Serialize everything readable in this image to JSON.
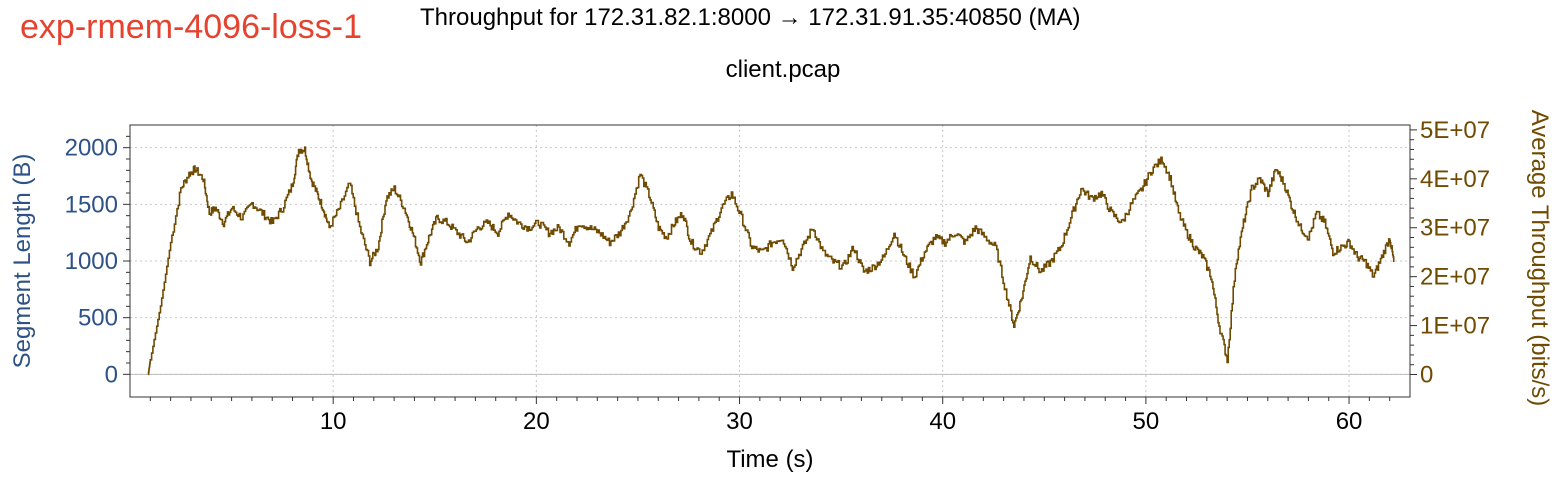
{
  "header": {
    "experiment_label": "exp-rmem-4096-loss-1",
    "title": "Throughput for 172.31.82.1:8000 → 172.31.91.35:40850 (MA)",
    "subtitle": "client.pcap"
  },
  "colors": {
    "experiment_label": "#e5432f",
    "left_axis": "#2e5287",
    "right_axis": "#6e4b00",
    "series": "#6e4b00",
    "grid": "#c8c8c8"
  },
  "chart_data": {
    "type": "line",
    "title": "Throughput for 172.31.82.1:8000 → 172.31.91.35:40850 (MA)",
    "subtitle": "client.pcap",
    "xlabel": "Time (s)",
    "ylabel": "Segment Length (B)",
    "y2label": "Average Throughput (bits/s)",
    "xlim": [
      0,
      63
    ],
    "ylim": [
      -200,
      2200
    ],
    "y2lim": [
      -4600000.0,
      51000000.0
    ],
    "x_ticks": [
      10,
      20,
      30,
      40,
      50,
      60
    ],
    "y_ticks": [
      0,
      500,
      1000,
      1500,
      2000
    ],
    "y2_ticks": [
      0,
      10000000,
      20000000,
      30000000,
      40000000,
      50000000
    ],
    "y2_tick_labels": [
      "0",
      "1E+07",
      "2E+07",
      "3E+07",
      "4E+07",
      "5E+07"
    ],
    "grid": true,
    "series": [
      {
        "axis": "right",
        "style": "step",
        "x": [
          0.9,
          1.0,
          1.5,
          2.0,
          2.5,
          2.9,
          3.2,
          3.6,
          3.9,
          4.2,
          4.6,
          5.0,
          5.5,
          6.0,
          6.5,
          7.0,
          7.5,
          8.0,
          8.3,
          8.6,
          8.9,
          9.2,
          9.5,
          9.8,
          10.3,
          10.8,
          11.3,
          11.8,
          12.2,
          12.6,
          13.0,
          13.5,
          13.9,
          14.3,
          14.7,
          15.1,
          15.6,
          16.1,
          16.6,
          17.1,
          17.6,
          18.1,
          18.6,
          19.1,
          19.6,
          20.1,
          20.6,
          21.1,
          21.6,
          22.1,
          22.6,
          23.1,
          23.6,
          24.1,
          24.6,
          25.1,
          25.6,
          26.0,
          26.4,
          26.8,
          27.2,
          27.6,
          28.1,
          28.6,
          29.1,
          29.6,
          30.1,
          30.6,
          31.1,
          31.6,
          32.1,
          32.6,
          33.1,
          33.6,
          34.1,
          34.6,
          35.1,
          35.6,
          36.1,
          36.6,
          37.1,
          37.6,
          38.1,
          38.6,
          39.1,
          39.6,
          40.1,
          40.6,
          41.1,
          41.6,
          42.1,
          42.6,
          43.1,
          43.5,
          43.9,
          44.3,
          44.8,
          45.3,
          45.8,
          46.3,
          46.8,
          47.3,
          47.8,
          48.3,
          48.8,
          49.3,
          49.8,
          50.3,
          50.8,
          51.2,
          51.6,
          52.0,
          52.4,
          52.8,
          53.2,
          53.6,
          54.0,
          54.4,
          54.8,
          55.2,
          55.6,
          56.0,
          56.4,
          56.8,
          57.2,
          57.6,
          58.0,
          58.4,
          58.8,
          59.2,
          59.6,
          60.0,
          60.4,
          60.8,
          61.2,
          61.6,
          62.0,
          62.2
        ],
        "values": [
          0,
          3000000,
          14000000,
          27000000,
          38000000,
          41000000,
          42000000,
          40000000,
          33000000,
          34000000,
          31000000,
          34000000,
          32000000,
          35000000,
          33000000,
          31000000,
          34000000,
          39000000,
          46000000,
          46000000,
          40000000,
          37000000,
          34000000,
          30000000,
          34000000,
          39000000,
          30000000,
          23000000,
          26000000,
          36000000,
          38000000,
          34000000,
          29000000,
          23000000,
          28000000,
          32000000,
          31000000,
          29000000,
          27000000,
          30000000,
          31000000,
          29000000,
          33000000,
          31000000,
          30000000,
          31000000,
          29000000,
          30000000,
          27000000,
          31000000,
          30000000,
          29000000,
          27000000,
          29000000,
          33000000,
          41000000,
          36000000,
          30000000,
          28000000,
          31000000,
          33000000,
          27000000,
          25000000,
          29000000,
          34000000,
          37000000,
          32000000,
          26000000,
          25000000,
          27000000,
          28000000,
          22000000,
          26000000,
          30000000,
          25000000,
          23000000,
          22000000,
          26000000,
          21000000,
          22000000,
          24000000,
          29000000,
          24000000,
          20000000,
          25000000,
          28000000,
          27000000,
          29000000,
          27000000,
          30000000,
          28000000,
          26000000,
          17000000,
          10000000,
          16000000,
          24000000,
          21000000,
          23000000,
          26000000,
          32000000,
          38000000,
          36000000,
          37000000,
          33000000,
          31000000,
          35000000,
          38000000,
          42000000,
          44000000,
          40000000,
          33000000,
          29000000,
          26000000,
          24000000,
          20000000,
          10000000,
          3000000,
          22000000,
          31000000,
          38000000,
          40000000,
          37000000,
          42000000,
          39000000,
          34000000,
          30000000,
          28000000,
          33000000,
          31000000,
          25000000,
          26000000,
          27000000,
          24000000,
          23000000,
          20000000,
          24000000,
          28000000,
          23000000
        ]
      }
    ]
  }
}
